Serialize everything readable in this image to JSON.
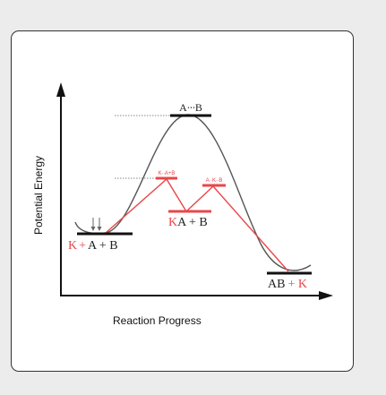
{
  "diagram": {
    "y_axis_label": "Potential Energy",
    "x_axis_label": "Reaction Progress",
    "uncatalyzed_transition_state": "A∙∙∙B",
    "catalyzed_transition_state_1": "K∙∙A+B",
    "catalyzed_transition_state_2": "A∙∙K∙∙B",
    "intermediate": {
      "catalyst": "K",
      "rest": "A + B"
    },
    "reactants": {
      "catalyst": "K",
      "plus": "+",
      "rest": "A + B"
    },
    "products": {
      "main": "AB",
      "plus_catalyst": "+ K"
    }
  },
  "colors": {
    "uncatalyzed": "#555555",
    "catalyzed": "#e8474a",
    "axis": "#111111",
    "card_background": "#ffffff",
    "page_background": "#ececec"
  }
}
